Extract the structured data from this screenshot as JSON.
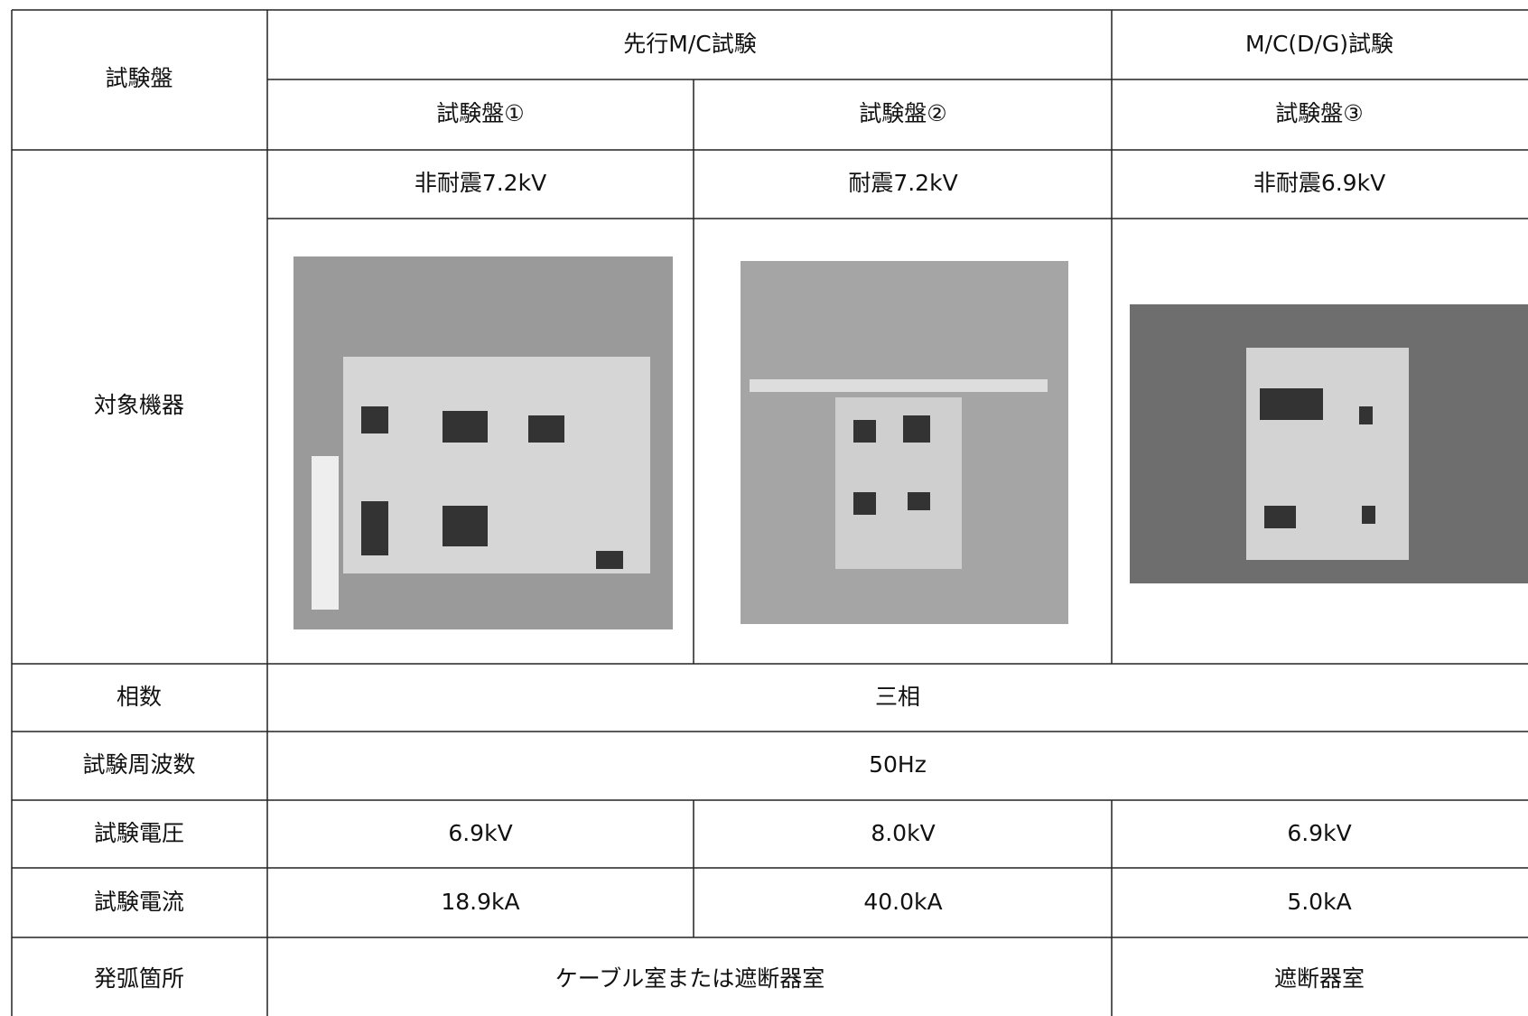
{
  "table": {
    "header": {
      "row_label": "試験盤",
      "groups": [
        "先行M/C試験",
        "M/C(D/G)試験"
      ],
      "panels": [
        "試験盤①",
        "試験盤②",
        "試験盤③"
      ]
    },
    "rows": [
      {
        "label": "対象機器",
        "values": [
          "非耐震7.2kV",
          "耐震7.2kV",
          "非耐震6.9kV"
        ]
      },
      {
        "label": "相数",
        "values": [
          "三相"
        ]
      },
      {
        "label": "試験周波数",
        "values": [
          "50Hz"
        ]
      },
      {
        "label": "試験電圧",
        "values": [
          "6.9kV",
          "8.0kV",
          "6.9kV"
        ]
      },
      {
        "label": "試験電流",
        "values": [
          "18.9kA",
          "40.0kA",
          "5.0kA"
        ]
      },
      {
        "label": "発弧箇所",
        "values": [
          "ケーブル室または遮断器室",
          "遮断器室"
        ]
      }
    ]
  }
}
